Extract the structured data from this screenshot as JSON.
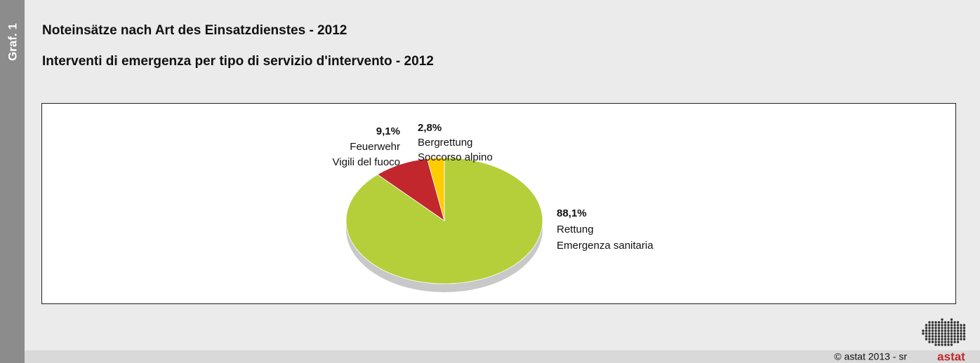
{
  "side_label": "Graf. 1",
  "footer": "© astat 2013 - sr",
  "logo": "astat",
  "chart_data": {
    "type": "pie",
    "title": "Noteinsätze nach Art des Einsatzdienstes - 2012",
    "subtitle": "Interventi di emergenza per tipo di servizio d'intervento - 2012",
    "categories": [
      [
        "Rettung",
        "Emergenza sanitaria"
      ],
      [
        "Feuerwehr",
        "Vigili del fuoco"
      ],
      [
        "Bergrettung",
        "Soccorso alpino"
      ]
    ],
    "values": [
      88.1,
      9.1,
      2.8
    ],
    "value_labels": [
      "88,1%",
      "9,1%",
      "2,8%"
    ],
    "colors": [
      "#b5cf3b",
      "#c1272d",
      "#ffcc00"
    ]
  }
}
